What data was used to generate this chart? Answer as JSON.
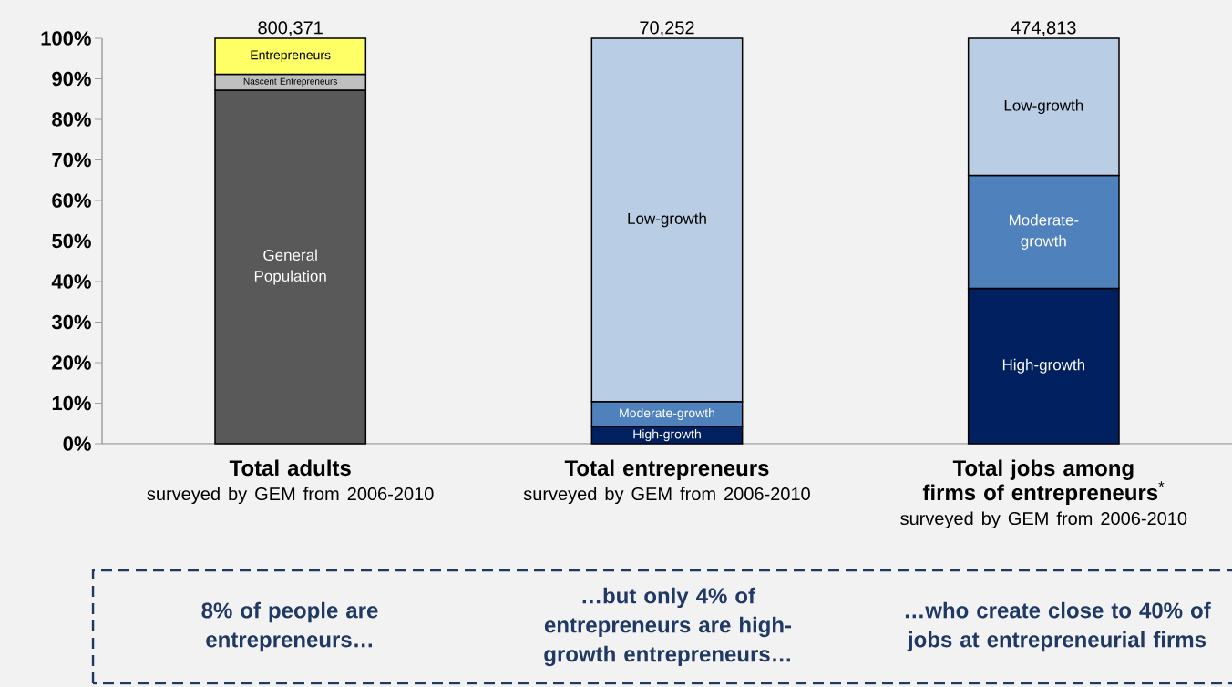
{
  "chart_data": {
    "type": "bar",
    "stacked": true,
    "categories": [
      "**Total adults**",
      "**Total entrepreneurs**",
      "**Total jobs among firms of entrepreneurs**$^{*}$"
    ],
    "series": [
      {
        "colors": [
          "#595959",
          "#002060",
          "#002060"
        ],
        "values": [
          87.2,
          4.2,
          38.3
        ],
        "value_labels": [
          "General Population",
          "High-growth",
          "High-growth"
        ]
      },
      {
        "colors": [
          "#bfbfbf",
          "#4f81bd",
          "#4f81bd"
        ],
        "values": [
          3.9,
          6.2,
          27.9
        ],
        "value_labels": [
          "Nascent Entrepreneurs",
          "Moderate-growth",
          "Moderate-growth"
        ]
      },
      {
        "colors": [
          "#ffff66",
          "#b9cde5",
          "#b9cde5"
        ],
        "values": [
          8.9,
          89.6,
          33.8
        ],
        "value_labels": [
          "Entrepreneurs",
          "Low-growth",
          "Low-growth"
        ]
      }
    ],
    "ylim": [
      0,
      100
    ],
    "yticks": [
      {
        "value": 0,
        "label": "0%"
      },
      {
        "value": 10,
        "label": "10%"
      },
      {
        "value": 20,
        "label": "20%"
      },
      {
        "value": 30,
        "label": "30%"
      },
      {
        "value": 40,
        "label": "40%"
      },
      {
        "value": 50,
        "label": "50%"
      },
      {
        "value": 60,
        "label": "60%"
      },
      {
        "value": 70,
        "label": "70%"
      },
      {
        "value": 80,
        "label": "80%"
      },
      {
        "value": 90,
        "label": "90%"
      },
      {
        "value": 100,
        "label": "100%"
      }
    ],
    "annotations": [
      "800,371",
      "70,252",
      "474,813",
      "surveyed by GEM from 2006-2010",
      "surveyed by GEM from 2006-2010",
      "surveyed by GEM from 2006-2010",
      "8% of people are entrepreneurs…",
      "…but only 4% of entrepreneurs are high-growth entrepreneurs…",
      "…who create close to 40% of jobs at entrepreneurial firms"
    ]
  }
}
